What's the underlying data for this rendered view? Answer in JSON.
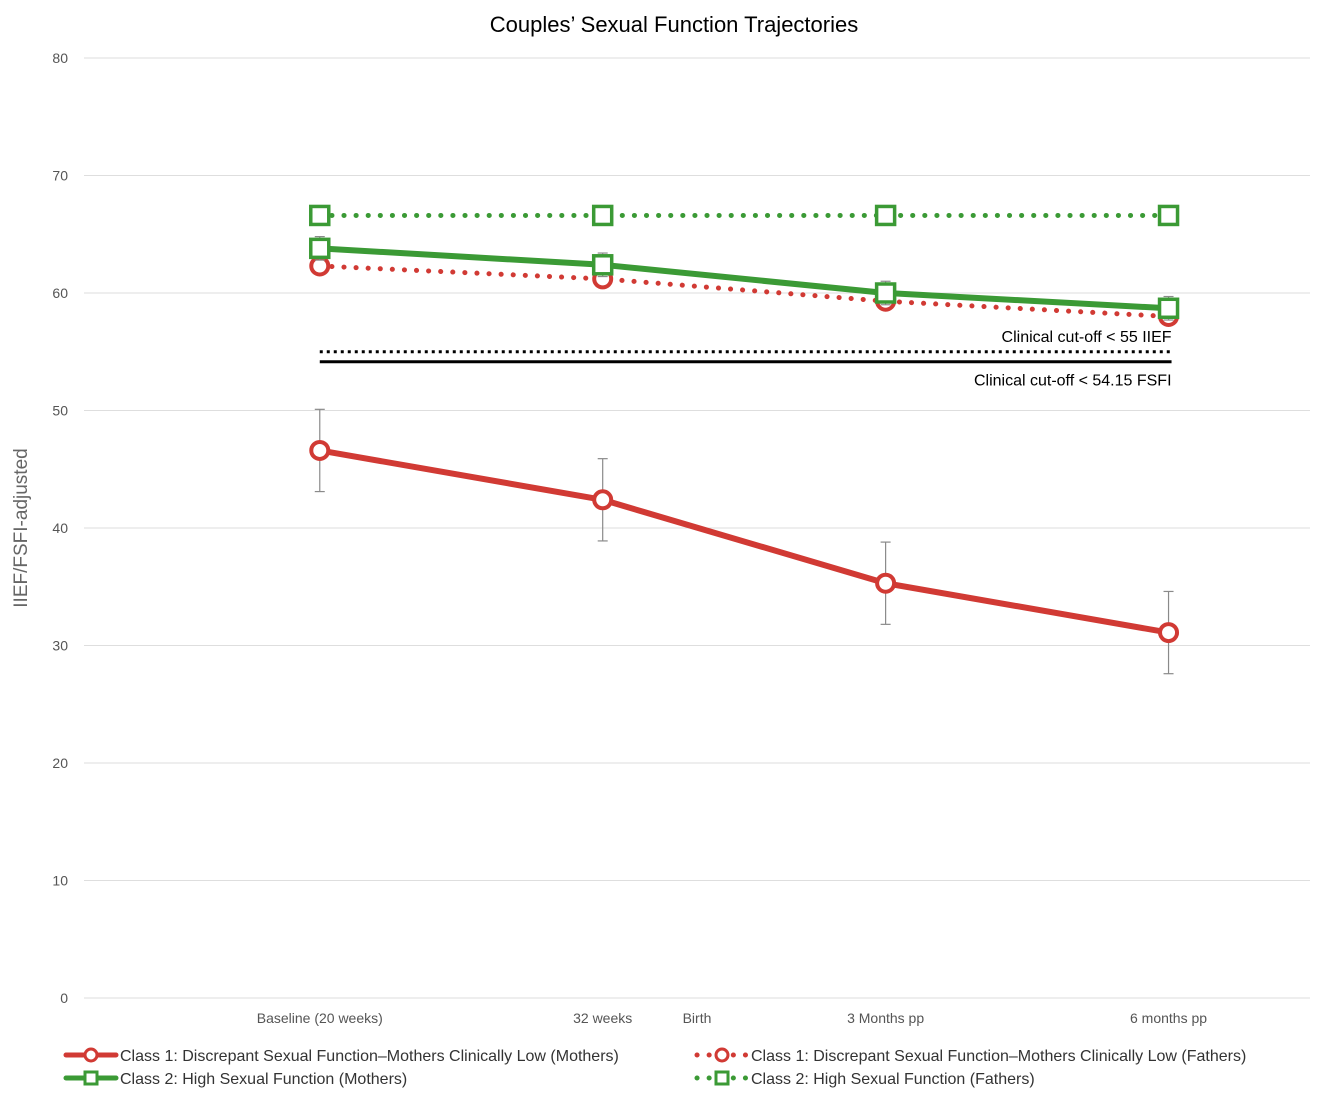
{
  "chart_data": {
    "type": "line",
    "title": "Couples’ Sexual Function Trajectories",
    "ylabel": "IIEF/FSFI-adjusted",
    "xlabel": "",
    "ylim": [
      0,
      80
    ],
    "yticks": [
      0,
      10,
      20,
      30,
      40,
      50,
      60,
      70,
      80
    ],
    "grid": true,
    "legend_position": "bottom",
    "x_ticks": [
      {
        "label": "Baseline (20 weeks)",
        "week": 20
      },
      {
        "label": "32 weeks",
        "week": 32
      },
      {
        "label": "Birth",
        "week": 36
      },
      {
        "label": "3 Months pp",
        "week": 44
      },
      {
        "label": "6 months pp",
        "week": 56
      }
    ],
    "x_points": [
      20,
      32,
      44,
      56
    ],
    "series": [
      {
        "name": "Class 1: Discrepant Sexual Function–Mothers Clinically Low (Mothers)",
        "color": "#d13a34",
        "line": "solid",
        "marker": "circle",
        "values": [
          46.6,
          42.4,
          35.3,
          31.1
        ],
        "error": [
          3.5,
          3.5,
          3.5,
          3.5
        ]
      },
      {
        "name": "Class 1: Discrepant Sexual Function–Mothers Clinically Low (Fathers)",
        "color": "#d13a34",
        "line": "dotted",
        "marker": "circle",
        "values": [
          62.3,
          61.2,
          59.3,
          58.0
        ],
        "error": [
          0,
          0,
          0,
          0
        ]
      },
      {
        "name": "Class 2: High Sexual Function (Mothers)",
        "color": "#3b9a35",
        "line": "solid",
        "marker": "square",
        "values": [
          63.8,
          62.4,
          60.0,
          58.7
        ],
        "error": [
          1.0,
          1.0,
          1.0,
          1.0
        ]
      },
      {
        "name": "Class 2: High Sexual Function (Fathers)",
        "color": "#3b9a35",
        "line": "dotted",
        "marker": "square",
        "values": [
          66.6,
          66.6,
          66.6,
          66.6
        ],
        "error": [
          0,
          0,
          0,
          0
        ]
      }
    ],
    "reference_lines": [
      {
        "label": "Clinical cut-off < 55 IIEF",
        "value": 55,
        "style": "dotted",
        "color": "#000000"
      },
      {
        "label": "Clinical cut-off < 54.15 FSFI",
        "value": 54.15,
        "style": "solid",
        "color": "#000000"
      }
    ]
  }
}
